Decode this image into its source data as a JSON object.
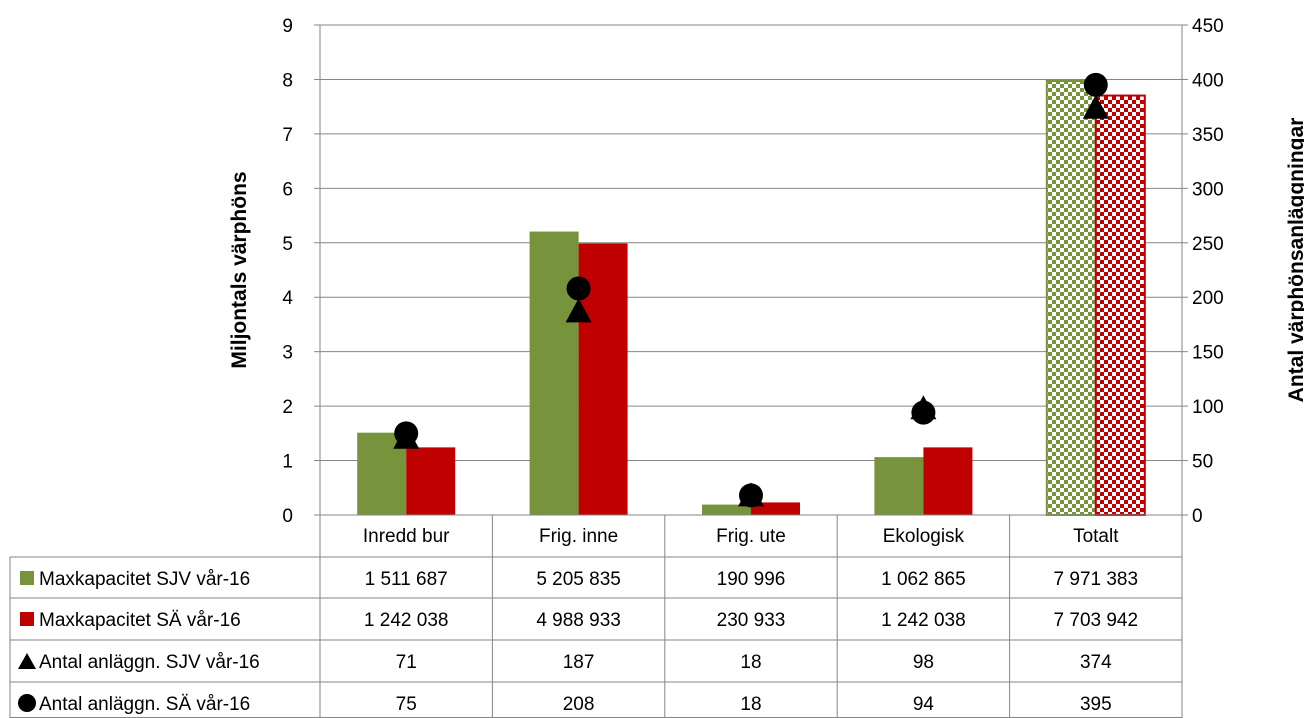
{
  "chart_data": {
    "type": "bar",
    "categories": [
      "Inredd bur",
      "Frig. inne",
      "Frig. ute",
      "Ekologisk",
      "Totalt"
    ],
    "ylabel": "Miljontals värphöns",
    "y2label": "Antal värphönsanläggningar",
    "ylim": [
      0,
      9
    ],
    "y2lim": [
      0,
      450
    ],
    "y_ticks": [
      0,
      1,
      2,
      3,
      4,
      5,
      6,
      7,
      8,
      9
    ],
    "y2_ticks": [
      0,
      50,
      100,
      150,
      200,
      250,
      300,
      350,
      400,
      450
    ],
    "grid": "horizontal",
    "legend": "data-table",
    "series": [
      {
        "name": "Maxkapacitet SJV vår-16",
        "kind": "bar",
        "axis": "left",
        "color": "#77933C",
        "values": [
          1.511687,
          5.205835,
          0.190996,
          1.062865,
          7.971383
        ],
        "labels": [
          "1 511 687",
          "5 205 835",
          "190 996",
          "1 062 865",
          "7 971 383"
        ],
        "marker": "square"
      },
      {
        "name": "Maxkapacitet SÄ vår-16",
        "kind": "bar",
        "axis": "left",
        "color": "#C00000",
        "values": [
          1.242038,
          4.988933,
          0.230933,
          1.242038,
          7.703942
        ],
        "labels": [
          "1 242 038",
          "4 988 933",
          "230 933",
          "1 242 038",
          "7 703 942"
        ],
        "marker": "square"
      },
      {
        "name": "Antal anläggn. SJV vår-16",
        "kind": "marker",
        "axis": "right",
        "color": "#000000",
        "values": [
          71,
          187,
          18,
          98,
          374
        ],
        "labels": [
          "71",
          "187",
          "18",
          "98",
          "374"
        ],
        "marker": "triangle"
      },
      {
        "name": "Antal anläggn. SÄ vår-16",
        "kind": "marker",
        "axis": "right",
        "color": "#000000",
        "values": [
          75,
          208,
          18,
          94,
          395
        ],
        "labels": [
          "75",
          "208",
          "18",
          "94",
          "395"
        ],
        "marker": "circle"
      }
    ]
  }
}
